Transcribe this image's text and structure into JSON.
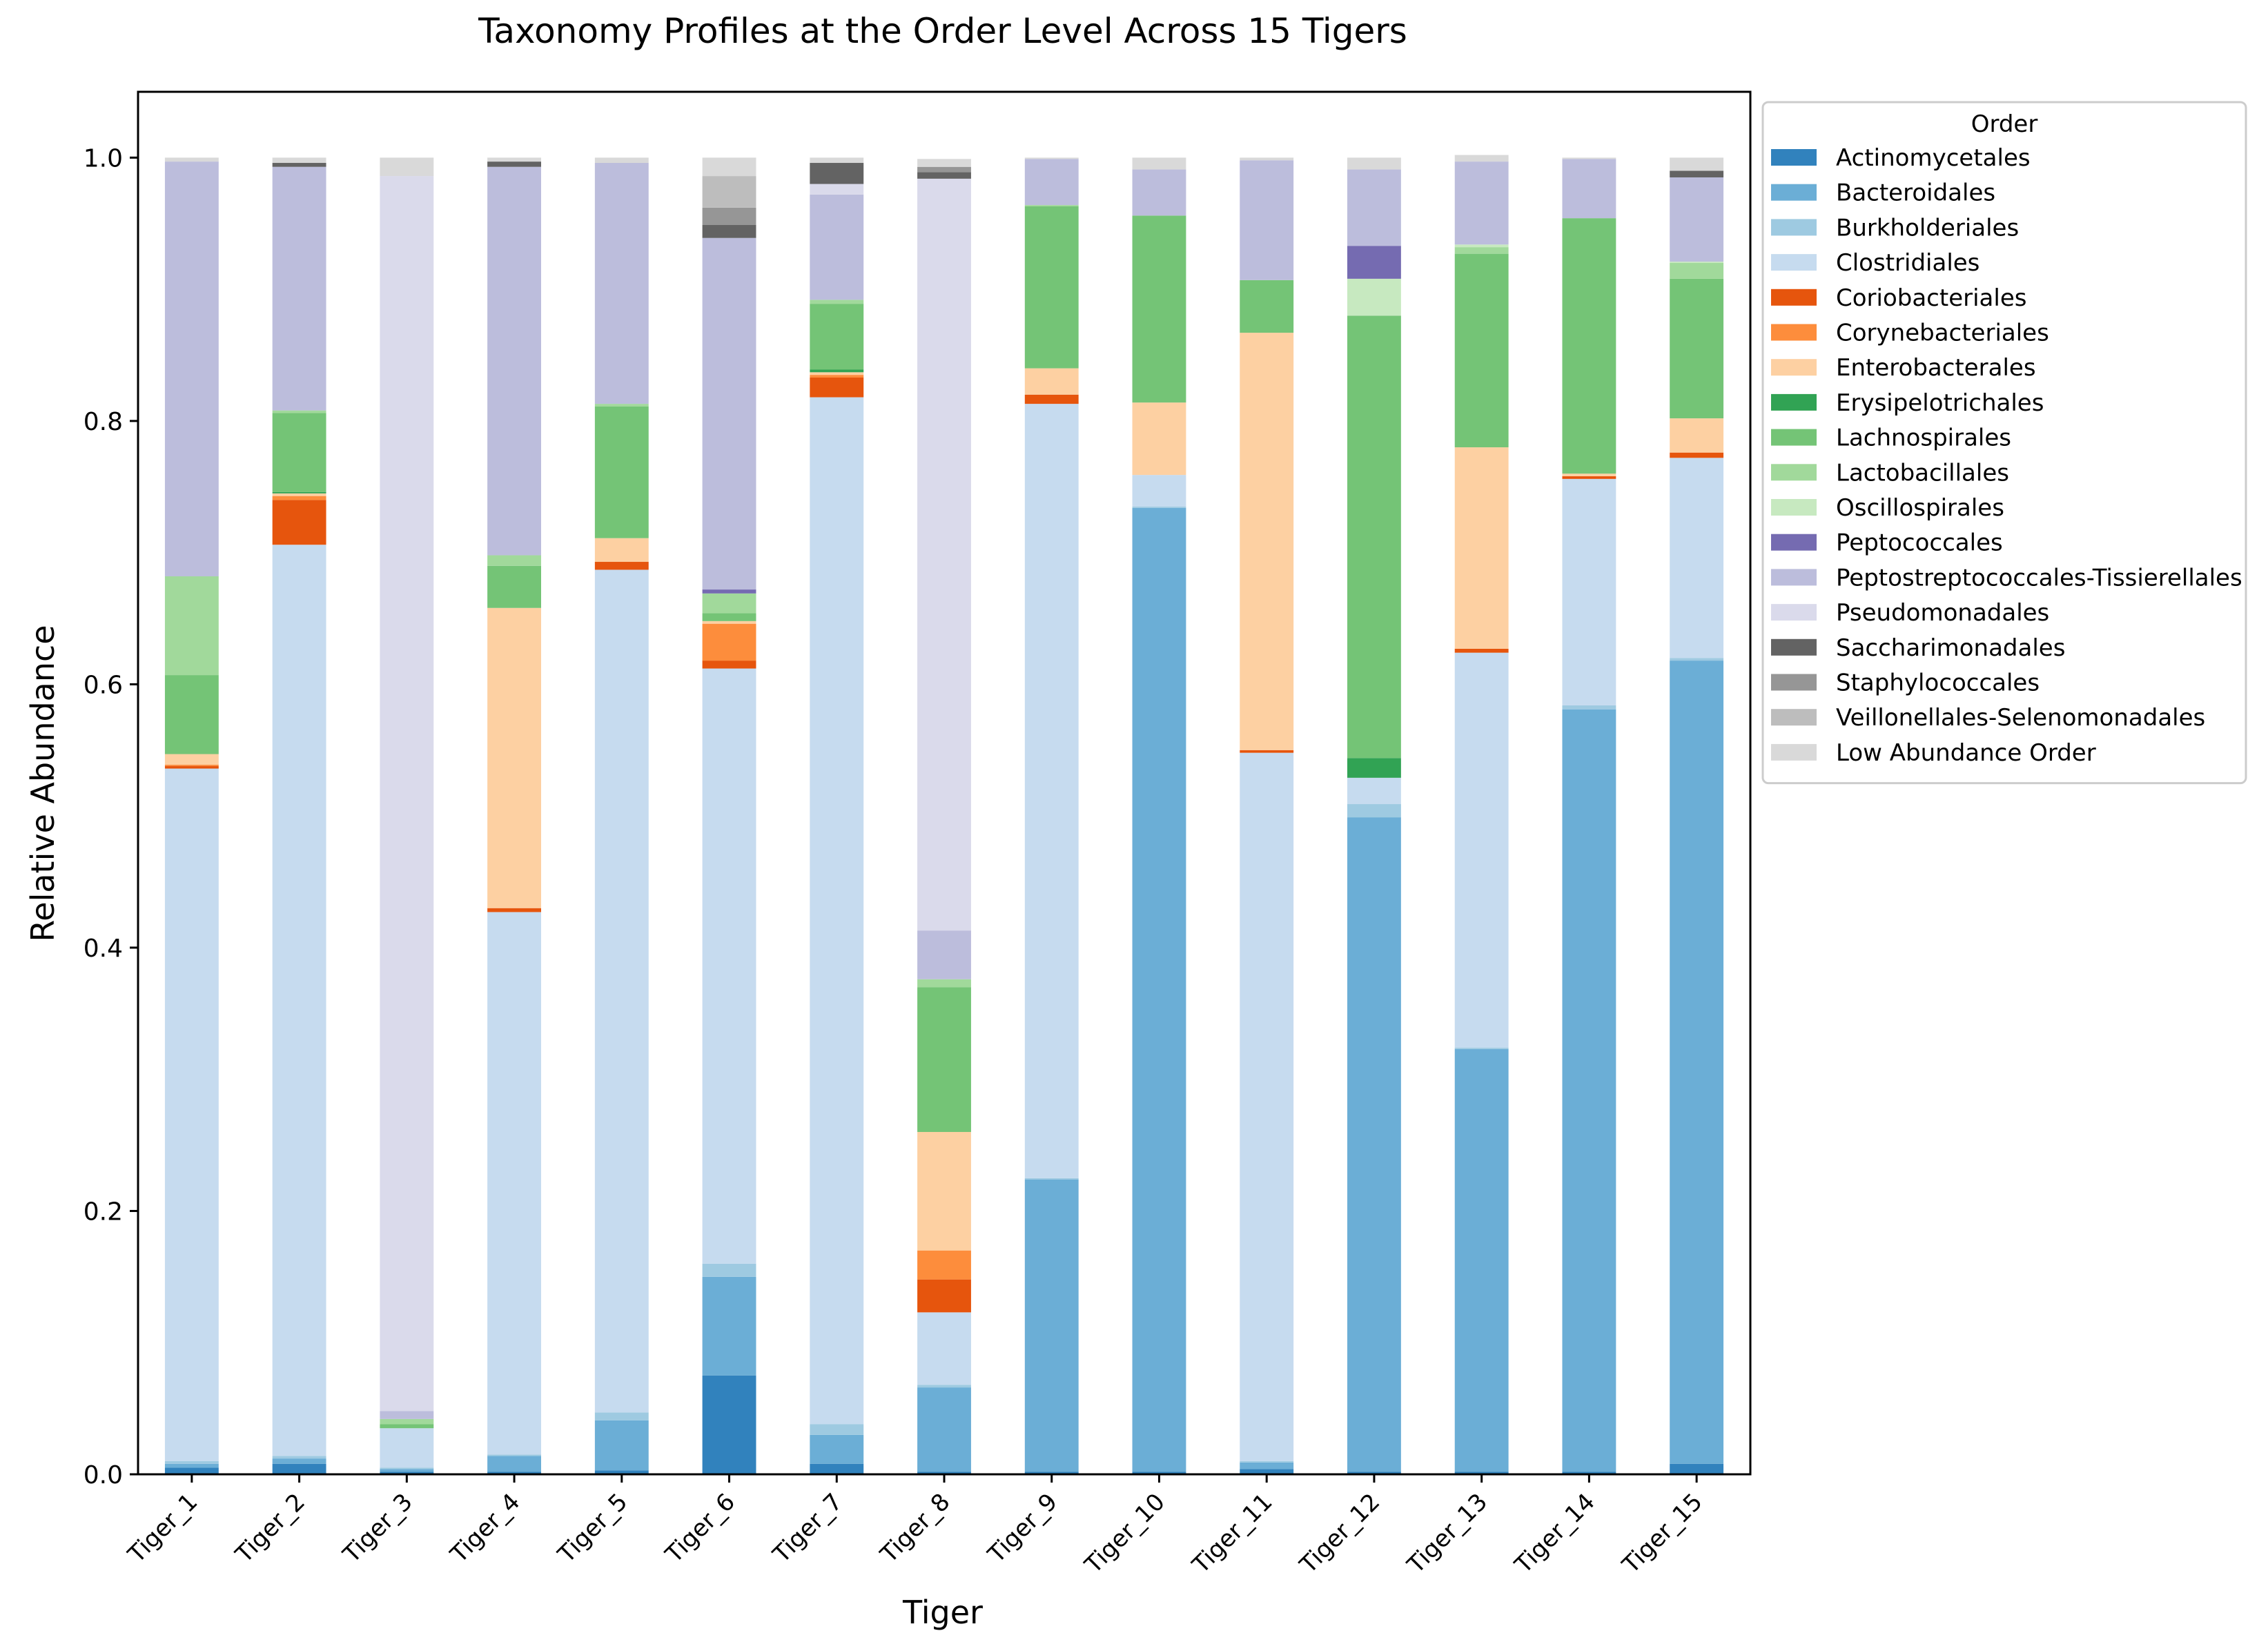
{
  "chart_data": {
    "type": "bar",
    "stacked": true,
    "title": "Taxonomy Profiles at the Order Level Across 15 Tigers",
    "xlabel": "Tiger",
    "ylabel": "Relative Abundance",
    "ylim": [
      0,
      1.05
    ],
    "yticks": [
      "0.0",
      "0.2",
      "0.4",
      "0.6",
      "0.8",
      "1.0"
    ],
    "grid": false,
    "legend_title": "Order",
    "legend_position": "top-right, outside plot",
    "categories": [
      "Tiger_1",
      "Tiger_2",
      "Tiger_3",
      "Tiger_4",
      "Tiger_5",
      "Tiger_6",
      "Tiger_7",
      "Tiger_8",
      "Tiger_9",
      "Tiger_10",
      "Tiger_11",
      "Tiger_12",
      "Tiger_13",
      "Tiger_14",
      "Tiger_15"
    ],
    "series": [
      {
        "name": "Actinomycetales",
        "color": "#3182bd",
        "values": [
          0.005,
          0.008,
          0.002,
          0.002,
          0.003,
          0.075,
          0.008,
          0.002,
          0.002,
          0.002,
          0.004,
          0.002,
          0.002,
          0.002,
          0.008
        ]
      },
      {
        "name": "Bacteroidales",
        "color": "#6baed6",
        "values": [
          0.003,
          0.004,
          0.002,
          0.012,
          0.038,
          0.075,
          0.022,
          0.064,
          0.222,
          0.732,
          0.005,
          0.497,
          0.321,
          0.579,
          0.61
        ]
      },
      {
        "name": "Burkholderiales",
        "color": "#9ecae1",
        "values": [
          0.002,
          0.002,
          0.001,
          0.001,
          0.006,
          0.01,
          0.008,
          0.002,
          0.001,
          0.001,
          0.001,
          0.01,
          0.001,
          0.003,
          0.002
        ]
      },
      {
        "name": "Clostridiales",
        "color": "#c6dbef",
        "values": [
          0.526,
          0.692,
          0.03,
          0.412,
          0.64,
          0.452,
          0.78,
          0.055,
          0.588,
          0.024,
          0.538,
          0.02,
          0.3,
          0.172,
          0.152
        ]
      },
      {
        "name": "Coriobacteriales",
        "color": "#e6550d",
        "values": [
          0.002,
          0.034,
          0.0,
          0.003,
          0.006,
          0.006,
          0.015,
          0.025,
          0.007,
          0.0,
          0.002,
          0.0,
          0.003,
          0.002,
          0.004
        ]
      },
      {
        "name": "Corynebacteriales",
        "color": "#fd8d3c",
        "values": [
          0.001,
          0.003,
          0.0,
          0.0,
          0.0,
          0.028,
          0.002,
          0.022,
          0.0,
          0.0,
          0.0,
          0.0,
          0.0,
          0.0,
          0.0
        ]
      },
      {
        "name": "Enterobacterales",
        "color": "#fdd0a2",
        "values": [
          0.008,
          0.002,
          0.0,
          0.228,
          0.018,
          0.002,
          0.002,
          0.09,
          0.02,
          0.055,
          0.317,
          0.0,
          0.153,
          0.002,
          0.026
        ]
      },
      {
        "name": "Erysipelotrichales",
        "color": "#31a354",
        "values": [
          0.0,
          0.001,
          0.0,
          0.0,
          0.0,
          0.0,
          0.002,
          0.0,
          0.0,
          0.0,
          0.0,
          0.015,
          0.0,
          0.0,
          0.0
        ]
      },
      {
        "name": "Lachnospirales",
        "color": "#74c476",
        "values": [
          0.06,
          0.06,
          0.003,
          0.032,
          0.1,
          0.006,
          0.05,
          0.11,
          0.123,
          0.142,
          0.04,
          0.336,
          0.147,
          0.194,
          0.106
        ]
      },
      {
        "name": "Lactobacillales",
        "color": "#a1d99b",
        "values": [
          0.075,
          0.002,
          0.004,
          0.008,
          0.002,
          0.015,
          0.003,
          0.006,
          0.001,
          0.0,
          0.0,
          0.0,
          0.005,
          0.0,
          0.012
        ]
      },
      {
        "name": "Oscillospirales",
        "color": "#c7e9c0",
        "values": [
          0.0,
          0.0,
          0.0,
          0.0,
          0.0,
          0.0,
          0.0,
          0.0,
          0.0,
          0.0,
          0.0,
          0.028,
          0.002,
          0.0,
          0.001
        ]
      },
      {
        "name": "Peptococcales",
        "color": "#756bb1",
        "values": [
          0.0,
          0.0,
          0.0,
          0.0,
          0.0,
          0.003,
          0.0,
          0.0,
          0.0,
          0.0,
          0.0,
          0.025,
          0.0,
          0.0,
          0.0
        ]
      },
      {
        "name": "Peptostreptococcales-Tissierellales",
        "color": "#bcbddc",
        "values": [
          0.315,
          0.185,
          0.006,
          0.295,
          0.183,
          0.267,
          0.08,
          0.037,
          0.035,
          0.035,
          0.091,
          0.058,
          0.063,
          0.045,
          0.064
        ]
      },
      {
        "name": "Pseudomonadales",
        "color": "#dadaeb",
        "values": [
          0.0,
          0.0,
          0.938,
          0.0,
          0.0,
          0.0,
          0.008,
          0.571,
          0.0,
          0.0,
          0.0,
          0.0,
          0.0,
          0.0,
          0.0
        ]
      },
      {
        "name": "Saccharimonadales",
        "color": "#636363",
        "values": [
          0.0,
          0.003,
          0.0,
          0.004,
          0.0,
          0.01,
          0.016,
          0.005,
          0.0,
          0.0,
          0.0,
          0.0,
          0.0,
          0.0,
          0.005
        ]
      },
      {
        "name": "Staphylococcales",
        "color": "#969696",
        "values": [
          0.0,
          0.0,
          0.0,
          0.0,
          0.0,
          0.013,
          0.0,
          0.004,
          0.0,
          0.0,
          0.0,
          0.0,
          0.0,
          0.0,
          0.0
        ]
      },
      {
        "name": "Veillonellales-Selenomonadales",
        "color": "#bdbdbd",
        "values": [
          0.0,
          0.0,
          0.0,
          0.0,
          0.0,
          0.024,
          0.0,
          0.0,
          0.0,
          0.0,
          0.0,
          0.0,
          0.0,
          0.0,
          0.0
        ]
      },
      {
        "name": "Low Abundance Order",
        "color": "#d9d9d9",
        "values": [
          0.003,
          0.004,
          0.014,
          0.003,
          0.004,
          0.014,
          0.004,
          0.006,
          0.001,
          0.009,
          0.002,
          0.009,
          0.005,
          0.001,
          0.01
        ]
      }
    ]
  }
}
